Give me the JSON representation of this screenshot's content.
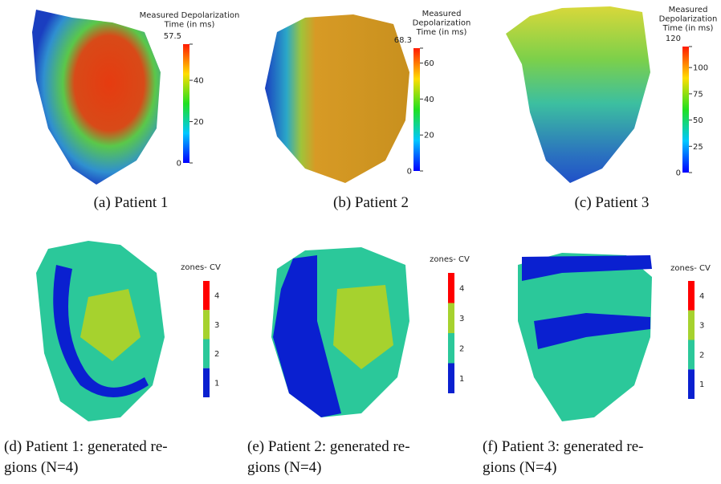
{
  "panels": [
    {
      "colorbar": {
        "title": [
          "Measured Depolarization",
          "Time (in ms)"
        ],
        "ticks": [
          "57.5",
          "40",
          "20",
          "0"
        ]
      },
      "caption": [
        "(a) Patient 1"
      ]
    },
    {
      "colorbar": {
        "title": [
          "Measured",
          "Depolarization",
          "Time (in ms)"
        ],
        "ticks": [
          "68.3",
          "60",
          "40",
          "20",
          "0"
        ]
      },
      "caption": [
        "(b) Patient 2"
      ]
    },
    {
      "colorbar": {
        "title": [
          "Measured",
          "Depolarization",
          "Time (in ms)"
        ],
        "ticks": [
          "120",
          "100",
          "75",
          "50",
          "25",
          "0"
        ]
      },
      "caption": [
        "(c) Patient 3"
      ]
    },
    {
      "colorbar": {
        "title": [
          "zones- CV"
        ],
        "ticks": [
          "4",
          "3",
          "2",
          "1"
        ]
      },
      "caption": [
        "(d) Patient 1: generated re-",
        "gions (N=4)"
      ]
    },
    {
      "colorbar": {
        "title": [
          "zones- CV"
        ],
        "ticks": [
          "4",
          "3",
          "2",
          "1"
        ]
      },
      "caption": [
        "(e) Patient 2: generated re-",
        "gions (N=4)"
      ]
    },
    {
      "colorbar": {
        "title": [
          "zones- CV"
        ],
        "ticks": [
          "4",
          "3",
          "2",
          "1"
        ]
      },
      "caption": [
        "(f) Patient 3: generated re-",
        "gions (N=4)"
      ]
    }
  ]
}
